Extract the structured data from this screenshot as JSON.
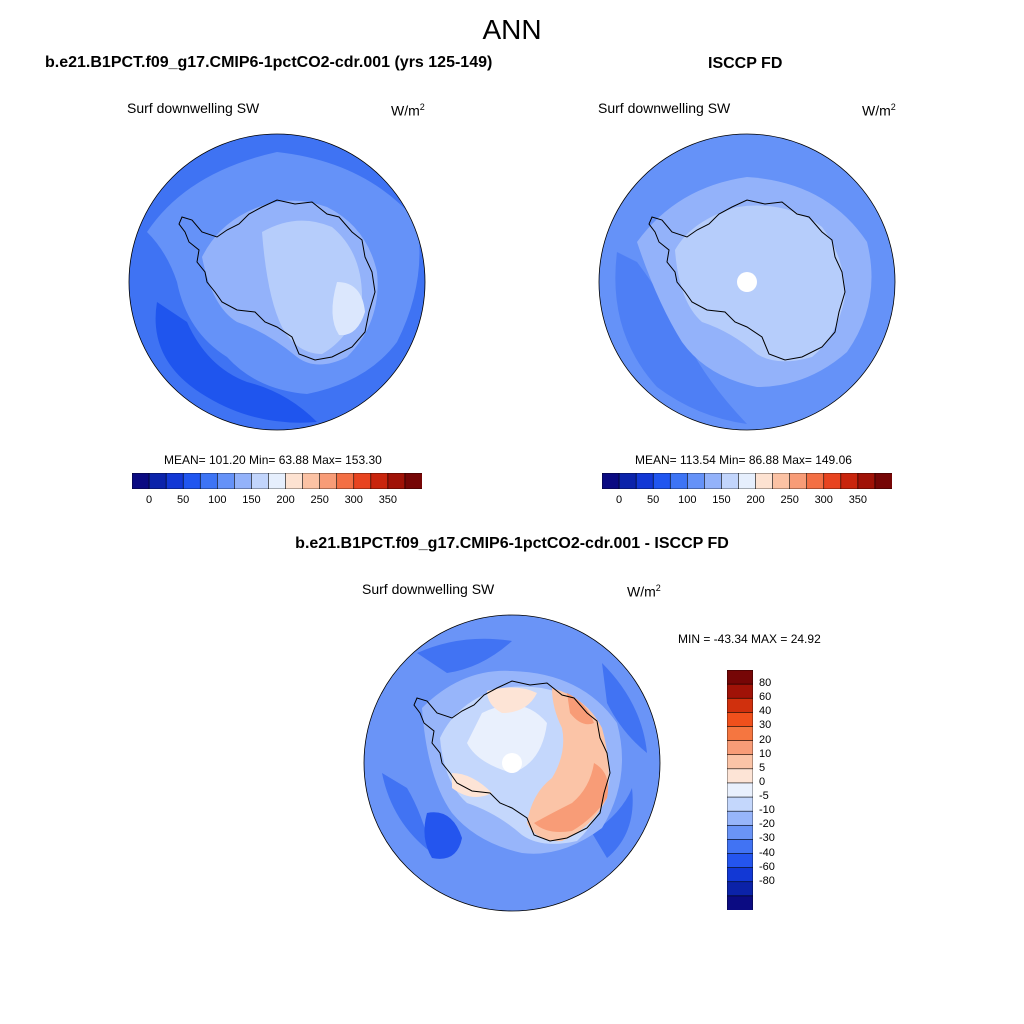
{
  "figure": {
    "title": "ANN"
  },
  "panels": {
    "model": {
      "title": "b.e21.B1PCT.f09_g17.CMIP6-1pctCO2-cdr.001 (yrs 125-149)",
      "variable": "Surf downwelling SW",
      "units_base": "W/m",
      "units_exp": "2",
      "stats": "MEAN= 101.20  Min=  63.88  Max= 153.30"
    },
    "obs": {
      "title": "ISCCP FD",
      "variable": "Surf downwelling SW",
      "units_base": "W/m",
      "units_exp": "2",
      "stats": "MEAN= 113.54  Min=  86.88  Max= 149.06"
    },
    "diff": {
      "title": "b.e21.B1PCT.f09_g17.CMIP6-1pctCO2-cdr.001 - ISCCP FD",
      "variable": "Surf downwelling SW",
      "units_base": "W/m",
      "units_exp": "2",
      "stats": "MIN = -43.34 MAX =  24.92"
    }
  },
  "colorbars": {
    "absolute": {
      "tick_labels": [
        "0",
        "50",
        "100",
        "150",
        "200",
        "250",
        "300",
        "350"
      ],
      "colors": [
        "#0b0b82",
        "#0b23aa",
        "#1238d5",
        "#2056f0",
        "#3d74f5",
        "#6592f8",
        "#93b2fa",
        "#c2d5fc",
        "#e6effd",
        "#fde2d1",
        "#fbc2a4",
        "#f89c77",
        "#f36f44",
        "#e84420",
        "#c9250d",
        "#a01207",
        "#760606"
      ]
    },
    "difference": {
      "tick_labels": [
        "80",
        "60",
        "40",
        "30",
        "20",
        "10",
        "5",
        "0",
        "-5",
        "-10",
        "-20",
        "-30",
        "-40",
        "-60",
        "-80"
      ],
      "colors": [
        "#760606",
        "#a01207",
        "#d0300d",
        "#f0501c",
        "#f57640",
        "#f89c77",
        "#fbc4a7",
        "#fde4d6",
        "#e9f0fd",
        "#c4d7fc",
        "#97b5fa",
        "#6a94f7",
        "#4173f3",
        "#2455ee",
        "#1238d5",
        "#0b22a8",
        "#0b0b82"
      ]
    }
  },
  "map_colors": {
    "ocean_dark": "#1f55ee",
    "ocean_mid": "#3f73f3",
    "ocean_light": "#6592f8",
    "land_light": "#93b2fa",
    "land_lighter": "#b6cdfb",
    "land_palest": "#dbe7fd",
    "warm_pale": "#fde2d1",
    "warm_mid": "#f9b392",
    "warm_strong": "#f58a5e",
    "missing": "#ffffff"
  }
}
